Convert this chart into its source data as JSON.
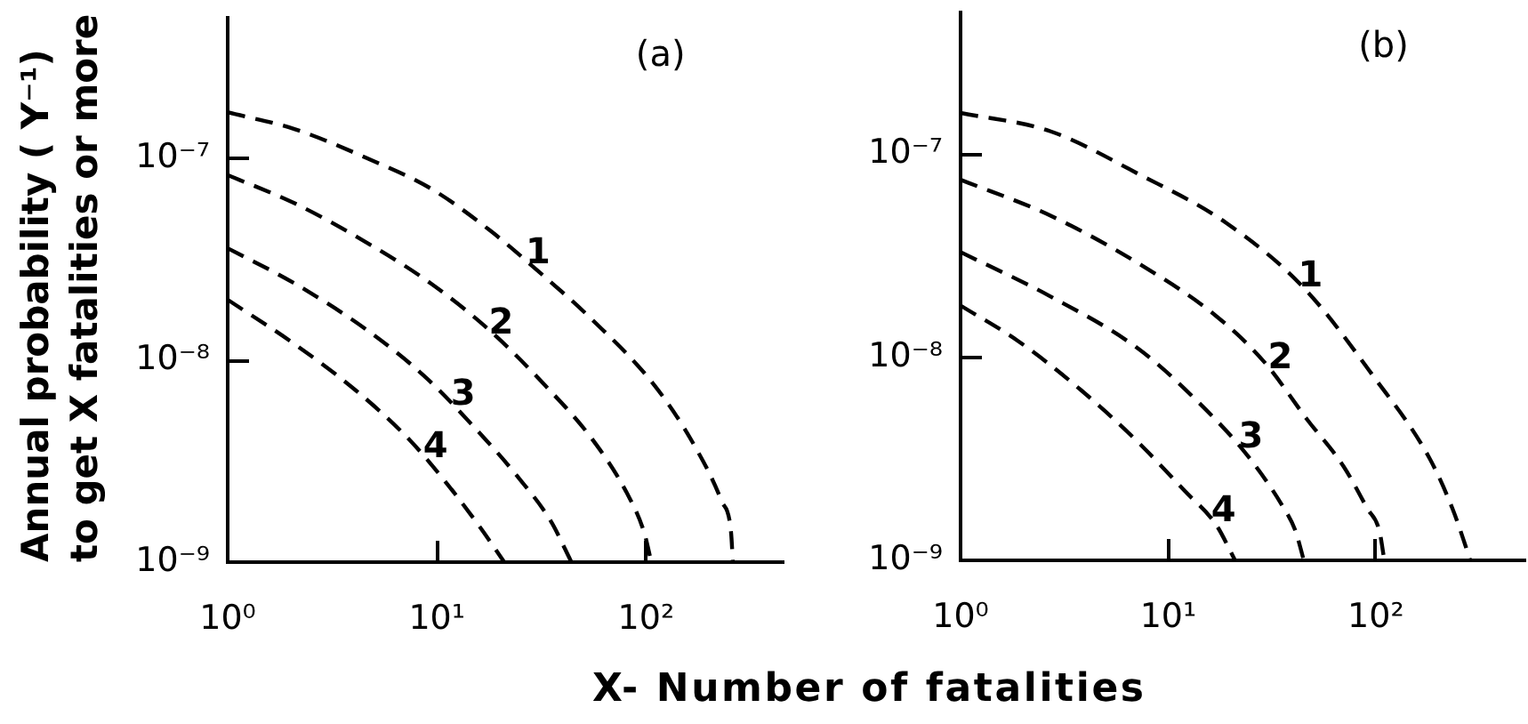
{
  "chart_data": [
    {
      "type": "line",
      "title": "(a)",
      "xlabel": "X- Number of fatalities",
      "ylabel": "Annual probability ( Y⁻¹)\nto get X fatalities or more",
      "log": "xy",
      "grid": false,
      "legend": false,
      "marker": "none",
      "line_style": "dashed",
      "xlim": [
        1,
        450
      ],
      "xticks": [
        {
          "value": 1,
          "label": "10⁰"
        },
        {
          "value": 10,
          "label": "10¹"
        },
        {
          "value": 100,
          "label": "10²"
        }
      ],
      "ylim": [
        1e-09,
        5e-07
      ],
      "yticks": [
        {
          "value": 1e-09,
          "label": "10⁻⁹"
        },
        {
          "value": 1e-08,
          "label": "10⁻⁸"
        },
        {
          "value": 1e-07,
          "label": "10⁻⁷"
        }
      ],
      "series": [
        {
          "name": "1",
          "color": "#000000",
          "x": [
            1,
            2.1,
            4.7,
            9.4,
            18,
            29,
            55,
            110,
            170,
            230,
            255,
            260
          ],
          "values": [
            1.7e-07,
            1.4e-07,
            1e-07,
            7.1e-08,
            4.4e-08,
            2.9e-08,
            1.6e-08,
            7.5e-09,
            3.8e-09,
            2e-09,
            1.4e-09,
            1e-09
          ]
        },
        {
          "name": "2",
          "color": "#000000",
          "x": [
            1,
            2.1,
            4.7,
            9.4,
            18,
            33,
            55,
            81,
            98,
            106
          ],
          "values": [
            8.3e-08,
            6e-08,
            3.8e-08,
            2.4e-08,
            1.4e-08,
            7.5e-09,
            4.1e-09,
            2.2e-09,
            1.4e-09,
            1e-09
          ]
        },
        {
          "name": "3",
          "color": "#000000",
          "x": [
            1,
            2.1,
            4.7,
            8.9,
            15,
            24,
            35,
            44
          ],
          "values": [
            3.6e-08,
            2.4e-08,
            1.4e-08,
            8.2e-09,
            4.7e-09,
            2.7e-09,
            1.6e-09,
            1e-09
          ]
        },
        {
          "name": "4",
          "color": "#000000",
          "x": [
            1,
            2.1,
            4.1,
            7.3,
            11,
            16,
            21
          ],
          "values": [
            2e-08,
            1.2e-08,
            7.1e-09,
            4.1e-09,
            2.5e-09,
            1.5e-09,
            1e-09
          ]
        }
      ]
    },
    {
      "type": "line",
      "title": "(b)",
      "log": "xy",
      "grid": false,
      "legend": false,
      "marker": "none",
      "line_style": "dashed",
      "xlim": [
        1,
        520
      ],
      "xticks": [
        {
          "value": 1,
          "label": "10⁰"
        },
        {
          "value": 10,
          "label": "10¹"
        },
        {
          "value": 100,
          "label": "10²"
        }
      ],
      "ylim": [
        1e-09,
        5e-07
      ],
      "yticks": [
        {
          "value": 1e-09,
          "label": "10⁻⁹"
        },
        {
          "value": 1e-08,
          "label": "10⁻⁸"
        },
        {
          "value": 1e-07,
          "label": "10⁻⁷"
        }
      ],
      "series": [
        {
          "name": "1",
          "color": "#000000",
          "x": [
            1,
            2.7,
            7.2,
            19,
            45,
            98,
            181,
            234,
            269,
            285
          ],
          "values": [
            1.6e-07,
            1.3e-07,
            8e-08,
            4.6e-08,
            2.2e-08,
            8e-09,
            3.2e-09,
            1.8e-09,
            1.2e-09,
            1e-09
          ]
        },
        {
          "name": "2",
          "color": "#000000",
          "x": [
            1,
            2.7,
            7.2,
            17,
            29,
            47,
            70,
            91,
            104,
            110
          ],
          "values": [
            7.5e-08,
            5e-08,
            2.9e-08,
            1.6e-08,
            9.5e-09,
            4.9e-09,
            2.9e-09,
            1.8e-09,
            1.4e-09,
            1e-09
          ]
        },
        {
          "name": "3",
          "color": "#000000",
          "x": [
            1,
            2.7,
            7.2,
            14,
            24,
            35,
            41,
            45
          ],
          "values": [
            3.3e-08,
            2e-08,
            1.1e-08,
            6e-09,
            3.3e-09,
            1.9e-09,
            1.4e-09,
            1e-09
          ]
        },
        {
          "name": "4",
          "color": "#000000",
          "x": [
            1,
            1.9,
            3.8,
            7.2,
            12,
            17,
            21
          ],
          "values": [
            1.8e-08,
            1.2e-08,
            6.9e-09,
            3.8e-09,
            2.2e-09,
            1.5e-09,
            1e-09
          ]
        }
      ]
    }
  ]
}
